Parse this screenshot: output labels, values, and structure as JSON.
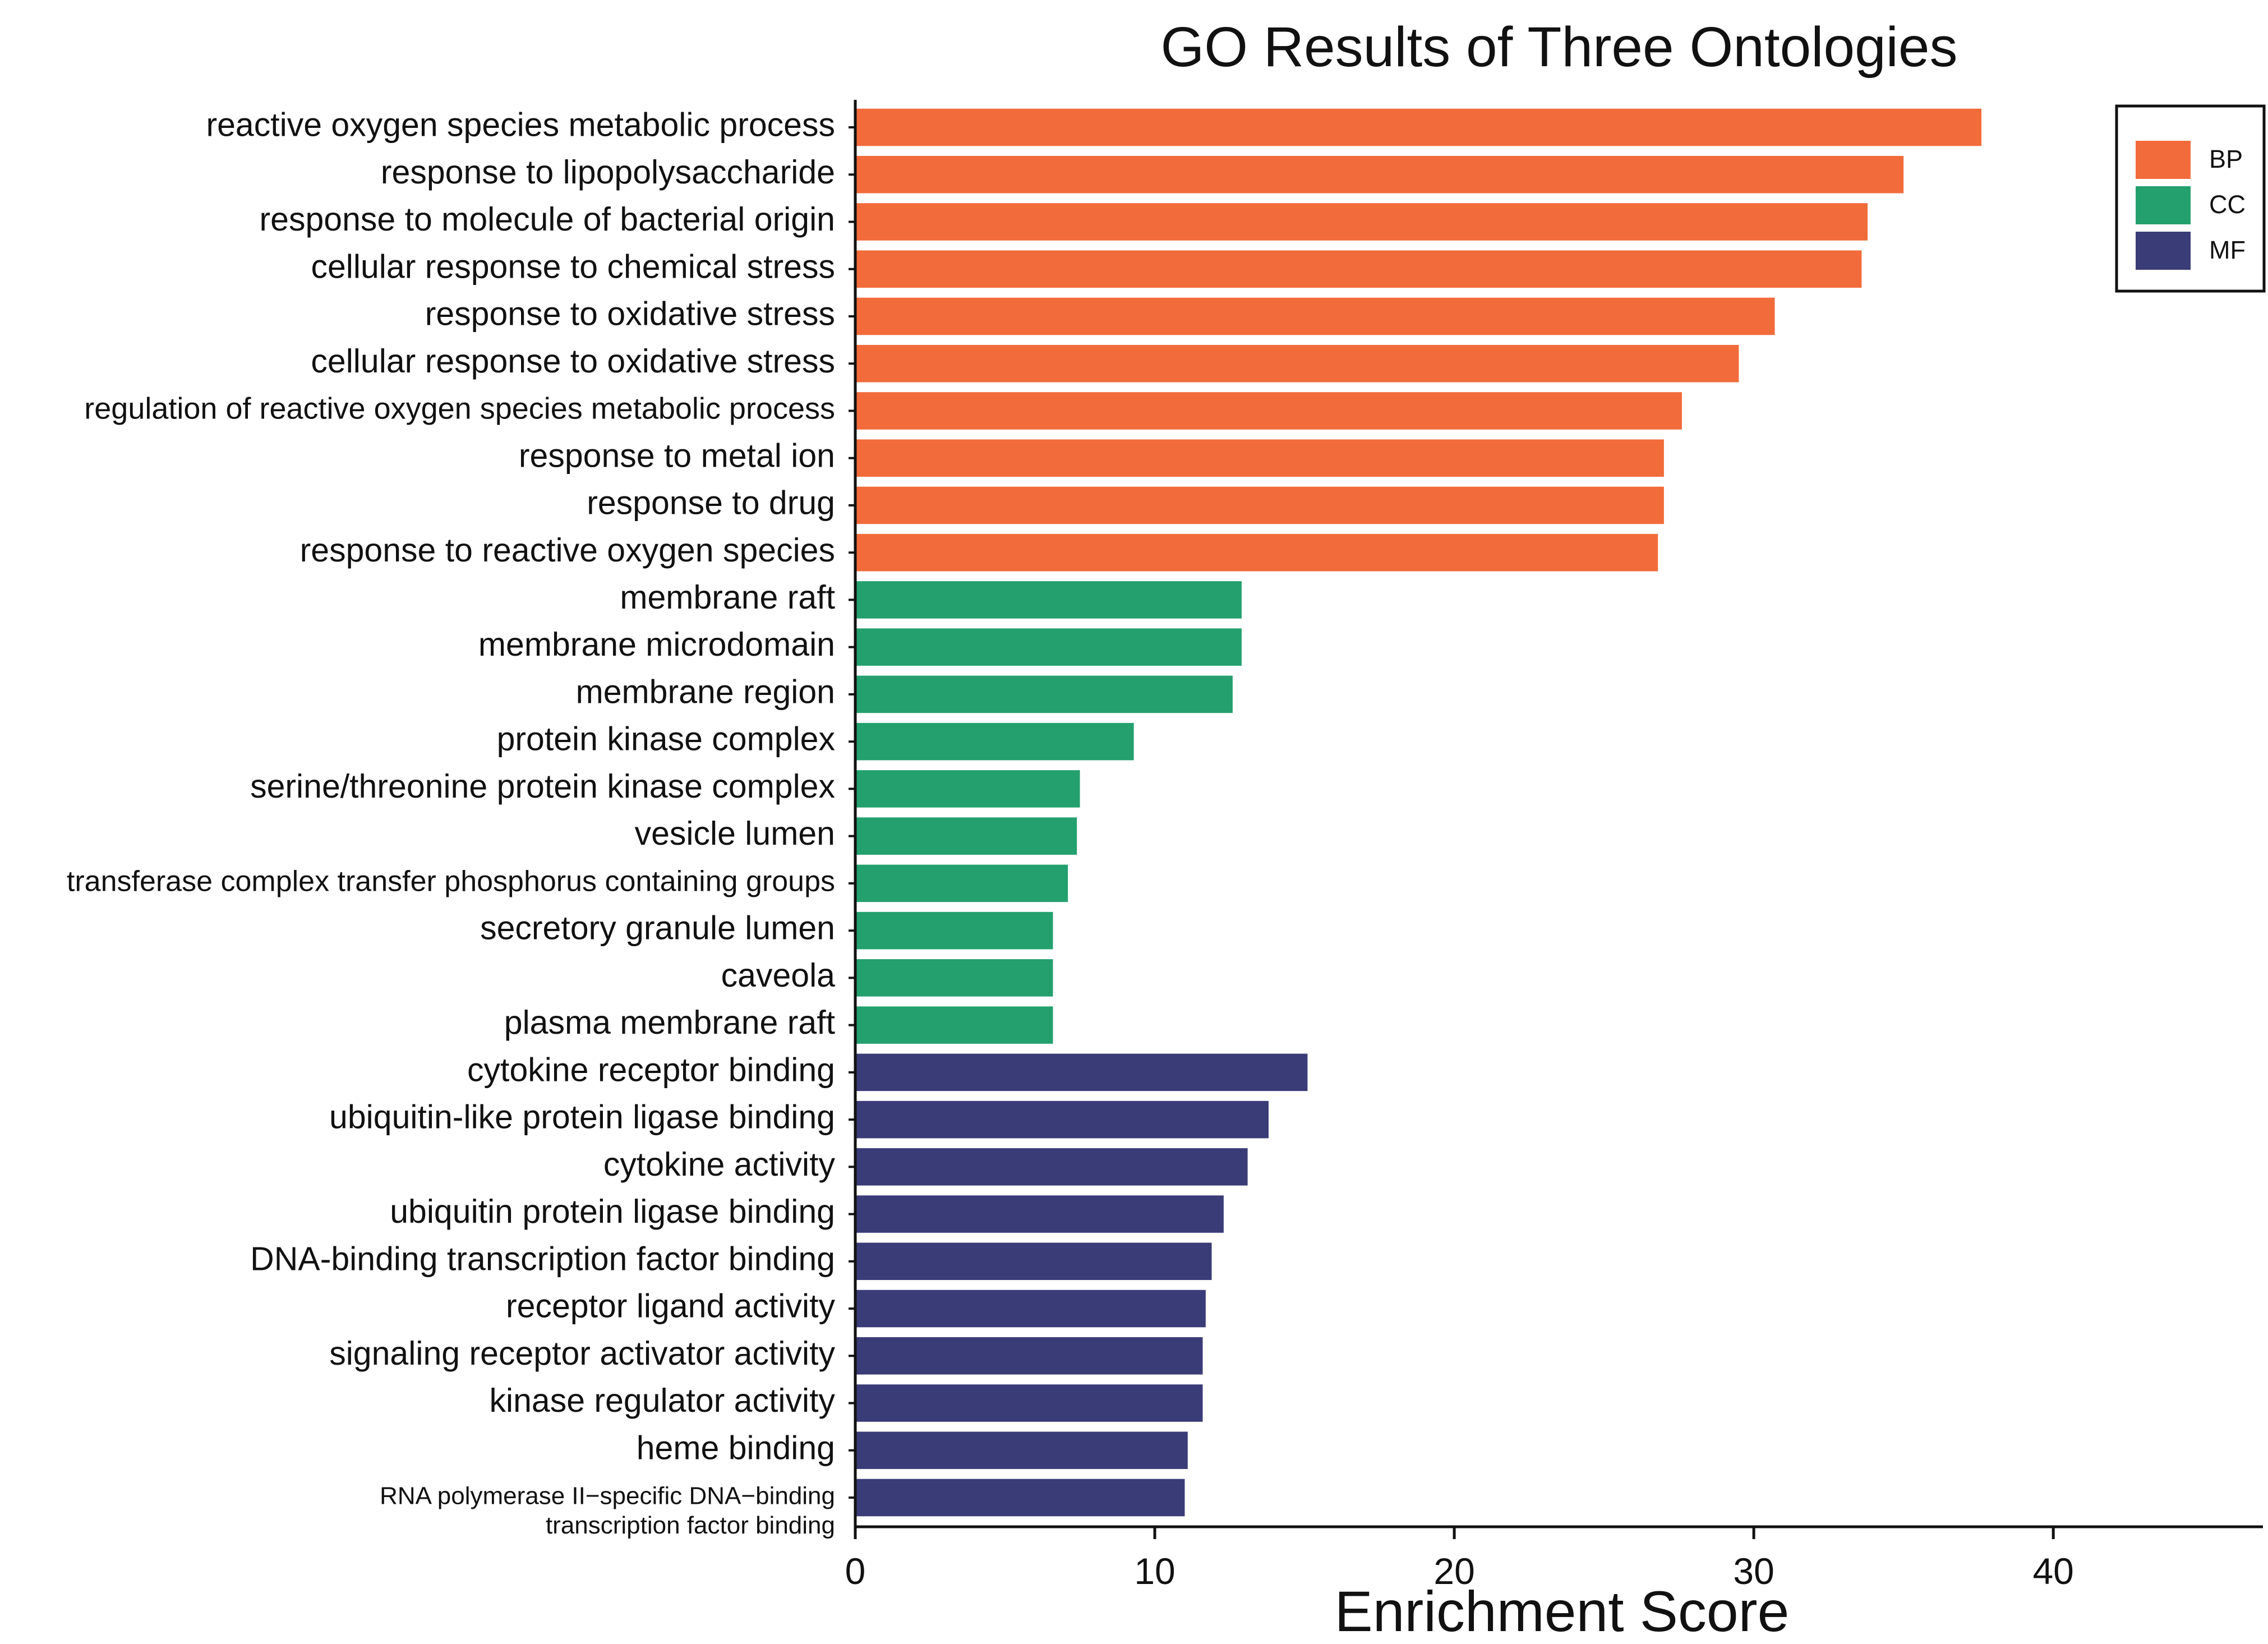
{
  "chart_data": {
    "type": "bar",
    "orientation": "horizontal",
    "title": "GO Results of Three Ontologies",
    "xlabel": "Enrichment Score",
    "ylabel": "",
    "xlim": [
      0,
      47
    ],
    "xticks": [
      "0",
      "10",
      "20",
      "30",
      "40"
    ],
    "legend_position": "top-right",
    "colors": {
      "BP": "#F26B3A",
      "CC": "#23A06D",
      "MF": "#3A3C78"
    },
    "legend": [
      {
        "label": "BP",
        "color_key": "BP"
      },
      {
        "label": "CC",
        "color_key": "CC"
      },
      {
        "label": "MF",
        "color_key": "MF"
      }
    ],
    "bars": [
      {
        "label": "reactive oxygen species metabolic process",
        "value": 37.6,
        "ontology": "BP"
      },
      {
        "label": "response to lipopolysaccharide",
        "value": 35.0,
        "ontology": "BP"
      },
      {
        "label": "response to molecule of bacterial origin",
        "value": 33.8,
        "ontology": "BP"
      },
      {
        "label": "cellular response to chemical stress",
        "value": 33.6,
        "ontology": "BP"
      },
      {
        "label": "response to oxidative stress",
        "value": 30.7,
        "ontology": "BP"
      },
      {
        "label": "cellular response to oxidative stress",
        "value": 29.5,
        "ontology": "BP"
      },
      {
        "label": "regulation of reactive oxygen species metabolic process",
        "value": 27.6,
        "ontology": "BP"
      },
      {
        "label": "response to metal ion",
        "value": 27.0,
        "ontology": "BP"
      },
      {
        "label": "response to drug",
        "value": 27.0,
        "ontology": "BP"
      },
      {
        "label": "response to reactive oxygen species",
        "value": 26.8,
        "ontology": "BP"
      },
      {
        "label": "membrane raft",
        "value": 12.9,
        "ontology": "CC"
      },
      {
        "label": "membrane microdomain",
        "value": 12.9,
        "ontology": "CC"
      },
      {
        "label": "membrane region",
        "value": 12.6,
        "ontology": "CC"
      },
      {
        "label": "protein kinase complex",
        "value": 9.3,
        "ontology": "CC"
      },
      {
        "label": "serine/threonine protein kinase complex",
        "value": 7.5,
        "ontology": "CC"
      },
      {
        "label": "vesicle lumen",
        "value": 7.4,
        "ontology": "CC"
      },
      {
        "label": "transferase complex transfer phosphorus containing groups",
        "value": 7.1,
        "ontology": "CC"
      },
      {
        "label": "secretory granule lumen",
        "value": 6.6,
        "ontology": "CC"
      },
      {
        "label": "caveola",
        "value": 6.6,
        "ontology": "CC"
      },
      {
        "label": "plasma membrane raft",
        "value": 6.6,
        "ontology": "CC"
      },
      {
        "label": "cytokine receptor binding",
        "value": 15.1,
        "ontology": "MF"
      },
      {
        "label": "ubiquitin-like protein ligase binding",
        "value": 13.8,
        "ontology": "MF"
      },
      {
        "label": "cytokine activity",
        "value": 13.1,
        "ontology": "MF"
      },
      {
        "label": "ubiquitin protein ligase binding",
        "value": 12.3,
        "ontology": "MF"
      },
      {
        "label": "DNA-binding transcription factor binding",
        "value": 11.9,
        "ontology": "MF"
      },
      {
        "label": "receptor ligand activity",
        "value": 11.7,
        "ontology": "MF"
      },
      {
        "label": "signaling receptor activator activity",
        "value": 11.6,
        "ontology": "MF"
      },
      {
        "label": "kinase regulator activity",
        "value": 11.6,
        "ontology": "MF"
      },
      {
        "label": "heme binding",
        "value": 11.1,
        "ontology": "MF"
      },
      {
        "label": "RNA polymerase II−specific DNA−binding transcription factor binding",
        "value": 11.0,
        "ontology": "MF"
      }
    ]
  }
}
